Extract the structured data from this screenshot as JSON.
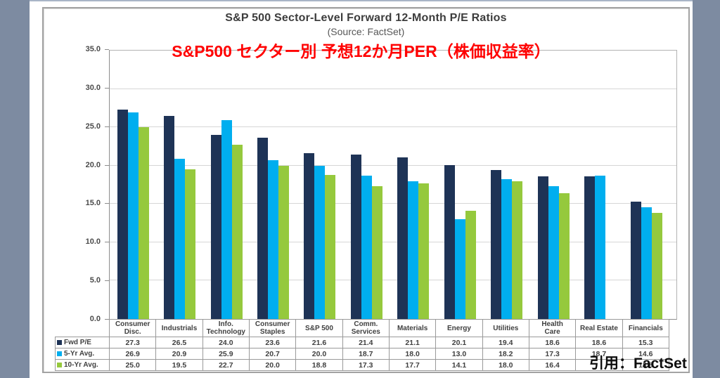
{
  "page": {
    "background": "#ffffff",
    "side_band_color": "#7d8ba1",
    "top_strip_color": "#a9b5c7"
  },
  "header": {
    "title": "S&P 500 Sector-Level Forward 12-Month P/E Ratios",
    "subtitle": "(Source: FactSet)",
    "overlay_title": "S&P500 セクター別 予想12か月PER（株価収益率）",
    "overlay_color": "#ff0000"
  },
  "citation": "引用：FactSet",
  "chart_data": {
    "type": "bar",
    "title": "S&P 500 Sector-Level Forward 12-Month P/E Ratios",
    "subtitle": "(Source: FactSet)",
    "categories": [
      "Consumer Disc.",
      "Industrials",
      "Info. Technology",
      "Consumer Staples",
      "S&P 500",
      "Comm. Services",
      "Materials",
      "Energy",
      "Utilities",
      "Health Care",
      "Real Estate",
      "Financials"
    ],
    "table_header_lines": [
      [
        "Consumer",
        "Disc."
      ],
      [
        "Industrials"
      ],
      [
        "Info.",
        "Technology"
      ],
      [
        "Consumer",
        "Staples"
      ],
      [
        "S&P 500"
      ],
      [
        "Comm.",
        "Services"
      ],
      [
        "Materials"
      ],
      [
        "Energy"
      ],
      [
        "Utilities"
      ],
      [
        "Health",
        "Care"
      ],
      [
        "Real Estate"
      ],
      [
        "Financials"
      ]
    ],
    "series": [
      {
        "name": "Fwd P/E",
        "color": "#1e3356",
        "values": [
          27.3,
          26.5,
          24.0,
          23.6,
          21.6,
          21.4,
          21.1,
          20.1,
          19.4,
          18.6,
          18.6,
          15.3
        ]
      },
      {
        "name": "5-Yr Avg.",
        "color": "#00aeef",
        "values": [
          26.9,
          20.9,
          25.9,
          20.7,
          20.0,
          18.7,
          18.0,
          13.0,
          18.2,
          17.3,
          18.7,
          14.6
        ]
      },
      {
        "name": "10-Yr Avg.",
        "color": "#95c93d",
        "values": [
          25.0,
          19.5,
          22.7,
          20.0,
          18.8,
          17.3,
          17.7,
          14.1,
          18.0,
          16.4,
          null,
          13.8
        ]
      }
    ],
    "ylim": [
      0,
      35
    ],
    "ytick_interval": 5,
    "ytick_labels": [
      "0.0",
      "5.0",
      "10.0",
      "15.0",
      "20.0",
      "25.0",
      "30.0",
      "35.0"
    ],
    "grid": true,
    "legend_position": "table-left",
    "xlabel": "",
    "ylabel": ""
  }
}
